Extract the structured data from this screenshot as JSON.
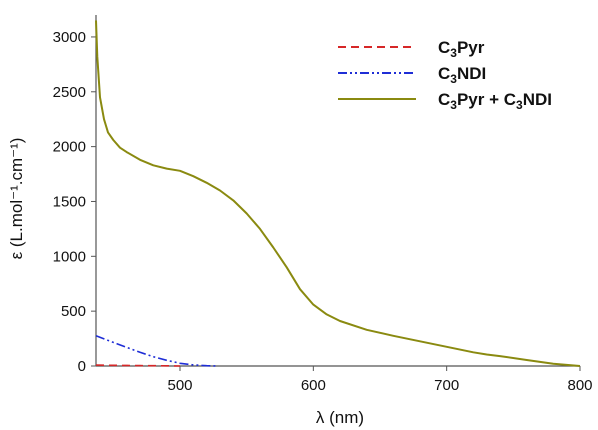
{
  "chart_data": {
    "type": "line",
    "xlabel": "λ (nm)",
    "ylabel": "ε (L.mol⁻¹.cm⁻¹)",
    "xlim": [
      437,
      800
    ],
    "ylim": [
      0,
      3200
    ],
    "xticks": [
      500,
      600,
      700,
      800
    ],
    "yticks": [
      0,
      500,
      1000,
      1500,
      2000,
      2500,
      3000
    ],
    "grid": false,
    "legend_position": "top-right",
    "series": [
      {
        "name": "C3Pyr",
        "legend": {
          "prefix": "C",
          "sub": "3",
          "suffix": "Pyr"
        },
        "color": "#d62728",
        "dash": "8,5",
        "x": [
          437,
          450,
          470,
          490,
          500
        ],
        "y": [
          8,
          6,
          4,
          2,
          0
        ]
      },
      {
        "name": "C3NDI",
        "legend": {
          "prefix": "C",
          "sub": "3",
          "suffix": "NDI"
        },
        "color": "#1f2ed6",
        "dash": "9,3,2,3,2,3",
        "x": [
          437,
          450,
          460,
          470,
          480,
          490,
          500,
          510,
          520,
          528
        ],
        "y": [
          275,
          215,
          170,
          125,
          85,
          52,
          25,
          10,
          3,
          0
        ]
      },
      {
        "name": "C3Pyr + C3NDI",
        "legend": {
          "prefix": "C",
          "sub": "3",
          "suffix": "Pyr + C",
          "sub2": "3",
          "suffix2": "NDI"
        },
        "color": "#8a8a10",
        "dash": "",
        "x": [
          437,
          438,
          440,
          443,
          446,
          450,
          455,
          460,
          470,
          480,
          490,
          500,
          510,
          520,
          530,
          540,
          550,
          560,
          570,
          580,
          590,
          600,
          610,
          620,
          640,
          660,
          680,
          700,
          720,
          730,
          740,
          760,
          780,
          800
        ],
        "y": [
          3150,
          2820,
          2450,
          2250,
          2130,
          2060,
          1990,
          1950,
          1880,
          1830,
          1800,
          1780,
          1730,
          1670,
          1600,
          1510,
          1390,
          1250,
          1080,
          900,
          700,
          560,
          470,
          410,
          330,
          275,
          225,
          175,
          125,
          105,
          90,
          55,
          20,
          0
        ]
      }
    ]
  }
}
